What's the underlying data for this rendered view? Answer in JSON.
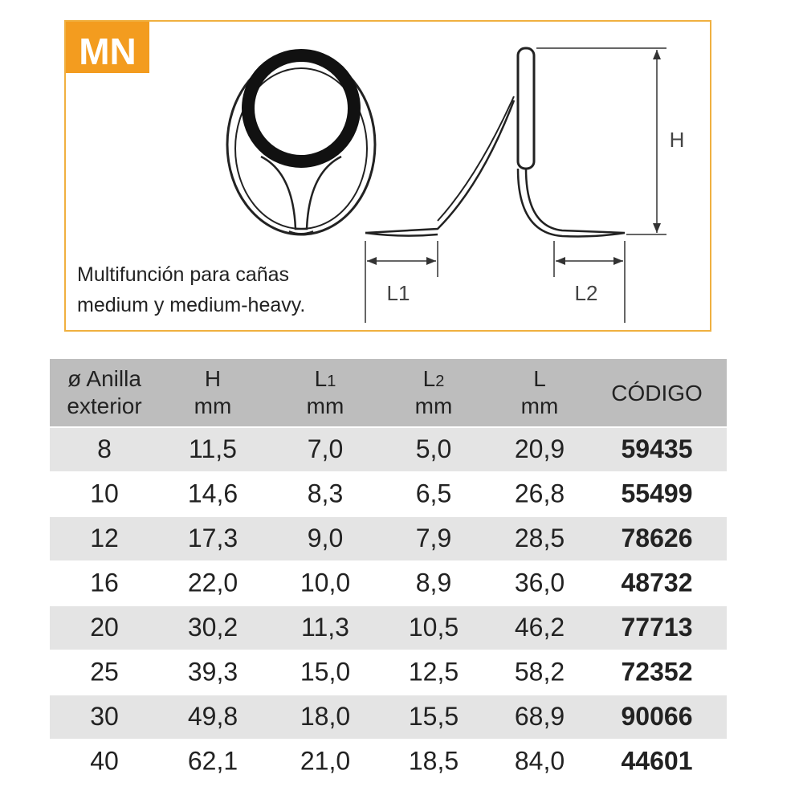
{
  "badge": "MN",
  "description": [
    "Multifunción para cañas",
    "medium y medium-heavy."
  ],
  "diagram": {
    "h": "H",
    "l1": "L1",
    "l2": "L2"
  },
  "table": {
    "header": [
      {
        "lines": [
          "ø Anilla",
          "exterior"
        ]
      },
      {
        "main": "H",
        "unit": "mm"
      },
      {
        "main": "L",
        "sub": "1",
        "unit": "mm"
      },
      {
        "main": "L",
        "sub": "2",
        "unit": "mm"
      },
      {
        "main": "L",
        "unit": "mm"
      },
      {
        "main": "CÓDIGO"
      }
    ],
    "rows": [
      [
        "8",
        "11,5",
        "7,0",
        "5,0",
        "20,9",
        "59435"
      ],
      [
        "10",
        "14,6",
        "8,3",
        "6,5",
        "26,8",
        "55499"
      ],
      [
        "12",
        "17,3",
        "9,0",
        "7,9",
        "28,5",
        "78626"
      ],
      [
        "16",
        "22,0",
        "10,0",
        "8,9",
        "36,0",
        "48732"
      ],
      [
        "20",
        "30,2",
        "11,3",
        "10,5",
        "46,2",
        "77713"
      ],
      [
        "25",
        "39,3",
        "15,0",
        "12,5",
        "58,2",
        "72352"
      ],
      [
        "30",
        "49,8",
        "18,0",
        "15,5",
        "68,9",
        "90066"
      ],
      [
        "40",
        "62,1",
        "21,0",
        "18,5",
        "84,0",
        "44601"
      ]
    ]
  }
}
